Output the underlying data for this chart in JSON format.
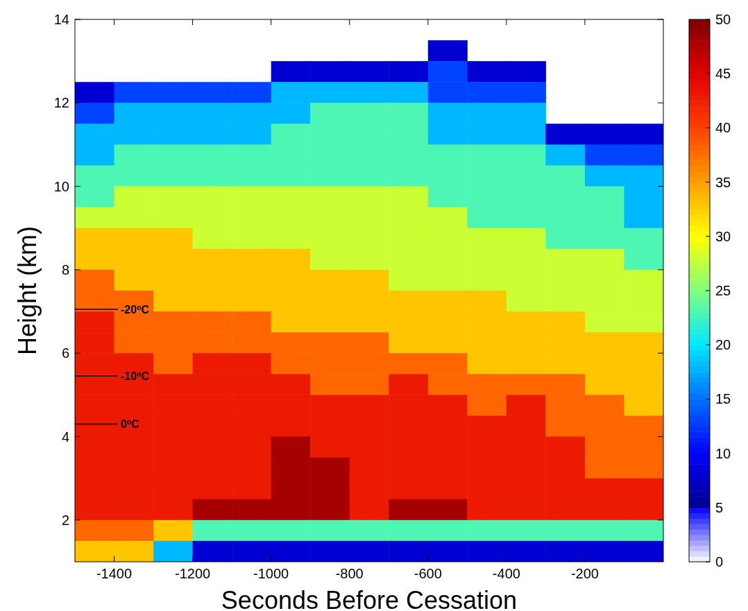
{
  "chart_data": {
    "type": "heatmap",
    "xlabel": "Seconds Before Cessation",
    "ylabel": "Height (km)",
    "x": [
      -1450,
      -1350,
      -1250,
      -1150,
      -1050,
      -950,
      -850,
      -750,
      -650,
      -550,
      -450,
      -350,
      -250,
      -150,
      -50
    ],
    "y": [
      13.25,
      12.75,
      12.25,
      11.75,
      11.25,
      10.75,
      10.25,
      9.75,
      9.25,
      8.75,
      8.25,
      7.75,
      7.25,
      6.75,
      6.25,
      5.75,
      5.25,
      4.75,
      4.25,
      3.75,
      3.25,
      2.75,
      2.25,
      1.75,
      1.25
    ],
    "xlim": [
      -1500,
      0
    ],
    "xticks": [
      -1400,
      -1200,
      -1000,
      -800,
      -600,
      -400,
      -200
    ],
    "ylim": [
      1,
      14
    ],
    "yticks": [
      2,
      4,
      6,
      8,
      10,
      12,
      14
    ],
    "clim": [
      0,
      50
    ],
    "cticks": [
      0,
      5,
      10,
      15,
      20,
      25,
      30,
      35,
      40,
      45,
      50
    ],
    "cells": [
      [
        null,
        null,
        null,
        null,
        null,
        null,
        null,
        null,
        null,
        8,
        null,
        null,
        null,
        null,
        null
      ],
      [
        null,
        null,
        null,
        null,
        null,
        8,
        8,
        8,
        8,
        13,
        8,
        8,
        null,
        null,
        null
      ],
      [
        8,
        13,
        13,
        13,
        13,
        18,
        18,
        18,
        18,
        13,
        13,
        13,
        null,
        null,
        null
      ],
      [
        13,
        18,
        18,
        18,
        18,
        18,
        23,
        23,
        23,
        18,
        18,
        18,
        null,
        null,
        null
      ],
      [
        18,
        18,
        18,
        18,
        18,
        23,
        23,
        23,
        23,
        18,
        18,
        18,
        8,
        8,
        8
      ],
      [
        18,
        23,
        23,
        23,
        23,
        23,
        23,
        23,
        23,
        23,
        23,
        23,
        18,
        13,
        13
      ],
      [
        23,
        23,
        23,
        23,
        23,
        23,
        23,
        23,
        23,
        23,
        23,
        23,
        23,
        18,
        18
      ],
      [
        23,
        28,
        28,
        28,
        28,
        28,
        28,
        28,
        28,
        23,
        23,
        23,
        23,
        23,
        18
      ],
      [
        28,
        28,
        28,
        28,
        28,
        28,
        28,
        28,
        28,
        28,
        23,
        23,
        23,
        23,
        18
      ],
      [
        33,
        33,
        33,
        28,
        28,
        28,
        28,
        28,
        28,
        28,
        28,
        28,
        23,
        23,
        23
      ],
      [
        33,
        33,
        33,
        33,
        33,
        33,
        28,
        28,
        28,
        28,
        28,
        28,
        28,
        28,
        23
      ],
      [
        38,
        33,
        33,
        33,
        33,
        33,
        33,
        33,
        28,
        28,
        28,
        28,
        28,
        28,
        28
      ],
      [
        38,
        38,
        33,
        33,
        33,
        33,
        33,
        33,
        33,
        33,
        33,
        28,
        28,
        28,
        28
      ],
      [
        43,
        38,
        38,
        38,
        38,
        33,
        33,
        33,
        33,
        33,
        33,
        33,
        33,
        28,
        28
      ],
      [
        43,
        38,
        38,
        38,
        38,
        38,
        38,
        38,
        33,
        33,
        33,
        33,
        33,
        33,
        33
      ],
      [
        43,
        43,
        38,
        43,
        43,
        38,
        38,
        38,
        38,
        38,
        33,
        33,
        33,
        33,
        33
      ],
      [
        43,
        43,
        43,
        43,
        43,
        43,
        38,
        38,
        43,
        38,
        38,
        38,
        38,
        33,
        33
      ],
      [
        43,
        43,
        43,
        43,
        43,
        43,
        43,
        43,
        43,
        43,
        38,
        43,
        38,
        38,
        33
      ],
      [
        43,
        43,
        43,
        43,
        43,
        43,
        43,
        43,
        43,
        43,
        43,
        43,
        38,
        38,
        38
      ],
      [
        43,
        43,
        43,
        43,
        43,
        48,
        43,
        43,
        43,
        43,
        43,
        43,
        43,
        38,
        38
      ],
      [
        43,
        43,
        43,
        43,
        43,
        48,
        48,
        43,
        43,
        43,
        43,
        43,
        43,
        38,
        38
      ],
      [
        43,
        43,
        43,
        43,
        43,
        48,
        48,
        43,
        43,
        43,
        43,
        43,
        43,
        43,
        43
      ],
      [
        43,
        43,
        43,
        48,
        48,
        48,
        48,
        43,
        48,
        48,
        43,
        43,
        43,
        43,
        43
      ],
      [
        38,
        38,
        33,
        23,
        23,
        23,
        23,
        23,
        23,
        23,
        23,
        23,
        23,
        23,
        23
      ],
      [
        33,
        33,
        18,
        8,
        8,
        8,
        8,
        8,
        8,
        8,
        8,
        8,
        8,
        8,
        8
      ]
    ],
    "ref_lines": [
      {
        "axis": "y",
        "value": 7.05,
        "label": "-20$^{o}$C",
        "color": "#000000"
      },
      {
        "axis": "y",
        "value": 5.45,
        "label": "-10$^{o}$C",
        "color": "#000000"
      },
      {
        "axis": "y",
        "value": 4.3,
        "label": "0$^{o}$C",
        "color": "#000000"
      }
    ]
  }
}
